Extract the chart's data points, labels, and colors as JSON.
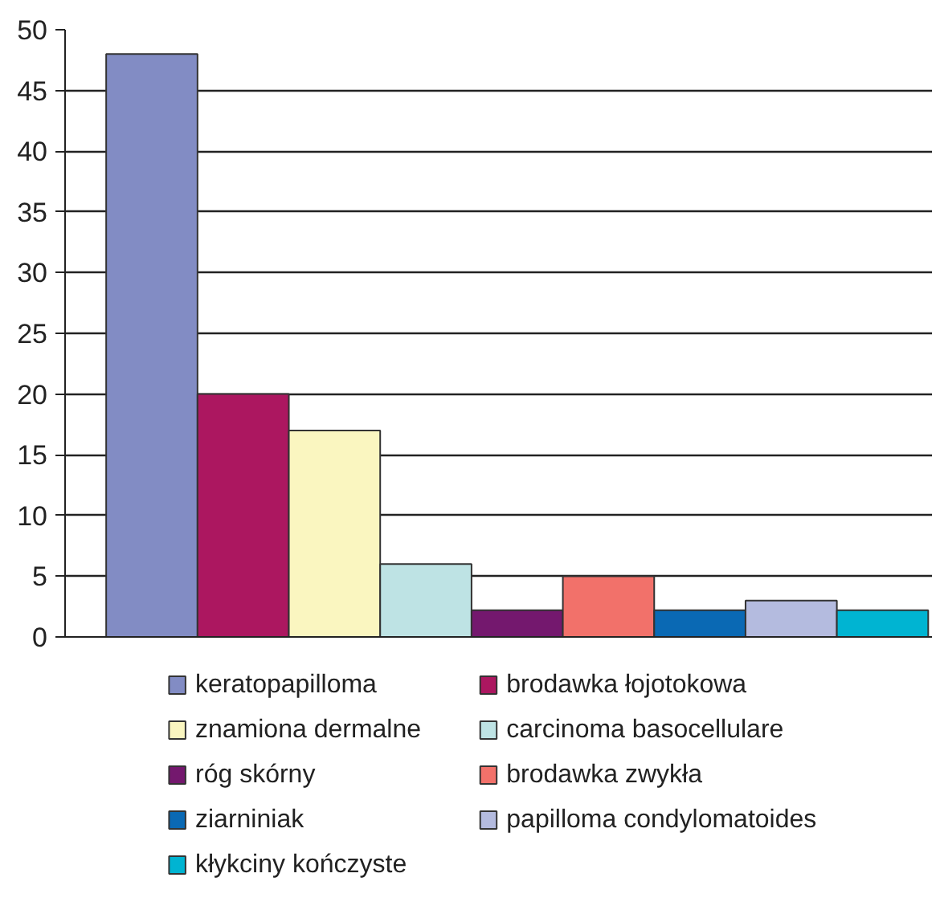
{
  "chart_data": {
    "type": "bar",
    "categories": [
      null
    ],
    "ylim": [
      0,
      50
    ],
    "yticks": [
      0,
      5,
      10,
      15,
      20,
      25,
      30,
      35,
      40,
      45,
      50
    ],
    "grid": "y",
    "legend": "bottom",
    "series": [
      {
        "name": "keratopapilloma",
        "color": "#828cc4",
        "values": [
          48
        ]
      },
      {
        "name": "brodawka łojotokowa",
        "color": "#ac1760",
        "values": [
          20
        ]
      },
      {
        "name": "znamiona dermalne",
        "color": "#faf6c0",
        "values": [
          17
        ]
      },
      {
        "name": "carcinoma basocellulare",
        "color": "#bee3e4",
        "values": [
          6
        ]
      },
      {
        "name": "róg skórny",
        "color": "#74186e",
        "values": [
          2.2
        ]
      },
      {
        "name": "brodawka zwykła",
        "color": "#f2716a",
        "values": [
          5
        ]
      },
      {
        "name": "ziarniniak",
        "color": "#0a69b4",
        "values": [
          2.2
        ]
      },
      {
        "name": "papilloma condylomatoides",
        "color": "#b4bbdf",
        "values": [
          3
        ]
      },
      {
        "name": "kłykciny kończyste",
        "color": "#00b4d2",
        "values": [
          2.2
        ]
      }
    ]
  }
}
